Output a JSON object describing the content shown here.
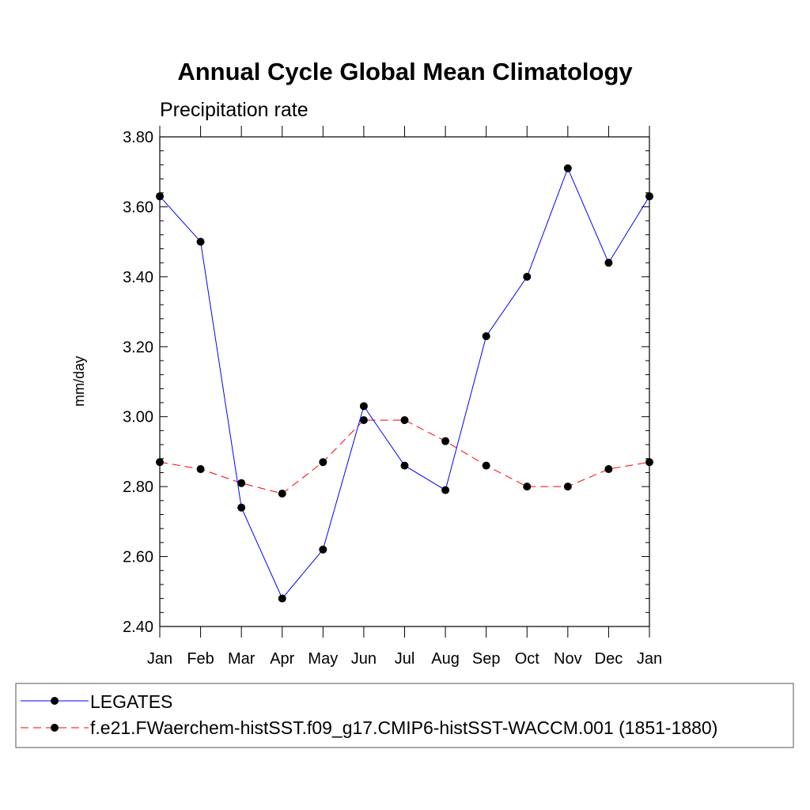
{
  "chart_data": {
    "type": "line",
    "title": "Annual Cycle Global Mean Climatology",
    "subtitle": "Precipitation rate",
    "xlabel": "",
    "ylabel": "mm/day",
    "categories": [
      "Jan",
      "Feb",
      "Mar",
      "Apr",
      "May",
      "Jun",
      "Jul",
      "Aug",
      "Sep",
      "Oct",
      "Nov",
      "Dec",
      "Jan"
    ],
    "ylim": [
      2.4,
      3.8
    ],
    "yticks": [
      "2.40",
      "2.60",
      "2.80",
      "3.00",
      "3.20",
      "3.40",
      "3.60",
      "3.80"
    ],
    "ytick_values": [
      2.4,
      2.6,
      2.8,
      3.0,
      3.2,
      3.4,
      3.6,
      3.8
    ],
    "series": [
      {
        "name": "LEGATES",
        "color": "#0000ff",
        "dash": "solid",
        "marker": "filled-circle",
        "values": [
          3.63,
          3.5,
          2.74,
          2.48,
          2.62,
          3.03,
          2.86,
          2.79,
          3.23,
          3.4,
          3.71,
          3.44,
          3.63
        ]
      },
      {
        "name": "f.e21.FWaerchem-histSST.f09_g17.CMIP6-histSST-WACCM.001 (1851-1880)",
        "color": "#ff0000",
        "dash": "dashed",
        "marker": "filled-circle",
        "values": [
          2.87,
          2.85,
          2.81,
          2.78,
          2.87,
          2.99,
          2.99,
          2.93,
          2.86,
          2.8,
          2.8,
          2.85,
          2.87
        ]
      }
    ],
    "grid": false,
    "legend_position": "bottom"
  }
}
